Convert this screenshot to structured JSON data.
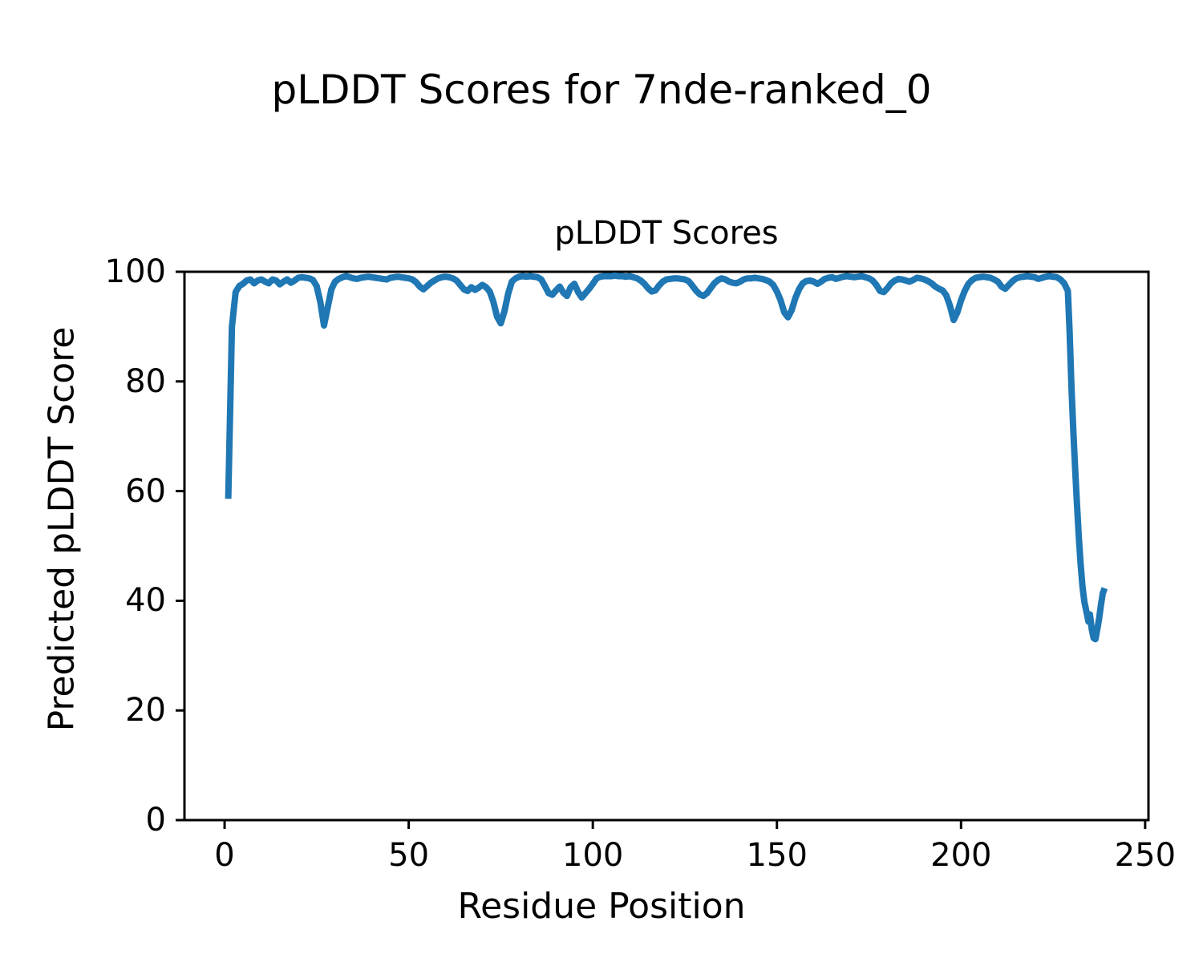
{
  "figure": {
    "suptitle": "pLDDT Scores for 7nde-ranked_0"
  },
  "chart_data": {
    "type": "line",
    "title": "pLDDT Scores",
    "xlabel": "Residue Position",
    "ylabel": "Predicted pLDDT Score",
    "xlim": [
      -10.9,
      250.9
    ],
    "ylim": [
      0,
      100
    ],
    "xticks": [
      "0",
      "50",
      "100",
      "150",
      "200",
      "250"
    ],
    "xtick_values": [
      0,
      50,
      100,
      150,
      200,
      250
    ],
    "yticks": [
      "0",
      "20",
      "40",
      "60",
      "80",
      "100"
    ],
    "ytick_values": [
      0,
      20,
      40,
      60,
      80,
      100
    ],
    "grid": false,
    "legend": null,
    "line_color": "#1f77b4",
    "line_width": 8,
    "series": [
      {
        "name": "pLDDT",
        "points": [
          [
            1,
            58.6
          ],
          [
            2,
            90.0
          ],
          [
            3,
            96.3
          ],
          [
            4,
            97.4
          ],
          [
            5,
            97.8
          ],
          [
            6,
            98.4
          ],
          [
            7,
            98.6
          ],
          [
            8,
            97.9
          ],
          [
            9,
            98.4
          ],
          [
            10,
            98.6
          ],
          [
            11,
            98.2
          ],
          [
            12,
            97.9
          ],
          [
            13,
            98.6
          ],
          [
            14,
            98.4
          ],
          [
            15,
            97.7
          ],
          [
            16,
            98.2
          ],
          [
            17,
            98.6
          ],
          [
            18,
            98.0
          ],
          [
            19,
            98.4
          ],
          [
            20,
            98.9
          ],
          [
            21,
            99.0
          ],
          [
            22,
            98.9
          ],
          [
            23,
            98.8
          ],
          [
            24,
            98.5
          ],
          [
            25,
            97.4
          ],
          [
            26,
            94.5
          ],
          [
            27,
            90.2
          ],
          [
            28,
            93.5
          ],
          [
            29,
            96.8
          ],
          [
            30,
            98.2
          ],
          [
            31,
            98.7
          ],
          [
            32,
            99.0
          ],
          [
            33,
            99.2
          ],
          [
            34,
            99.0
          ],
          [
            35,
            98.8
          ],
          [
            36,
            98.7
          ],
          [
            37,
            98.9
          ],
          [
            38,
            99.0
          ],
          [
            39,
            99.1
          ],
          [
            40,
            99.0
          ],
          [
            41,
            98.9
          ],
          [
            42,
            98.8
          ],
          [
            43,
            98.7
          ],
          [
            44,
            98.6
          ],
          [
            45,
            98.9
          ],
          [
            46,
            99.0
          ],
          [
            47,
            99.1
          ],
          [
            48,
            99.0
          ],
          [
            49,
            98.9
          ],
          [
            50,
            98.8
          ],
          [
            51,
            98.6
          ],
          [
            52,
            98.1
          ],
          [
            53,
            97.3
          ],
          [
            54,
            96.8
          ],
          [
            55,
            97.4
          ],
          [
            56,
            98.0
          ],
          [
            57,
            98.4
          ],
          [
            58,
            98.8
          ],
          [
            59,
            99.0
          ],
          [
            60,
            99.1
          ],
          [
            61,
            99.0
          ],
          [
            62,
            98.8
          ],
          [
            63,
            98.4
          ],
          [
            64,
            97.6
          ],
          [
            65,
            96.8
          ],
          [
            66,
            96.5
          ],
          [
            67,
            97.2
          ],
          [
            68,
            96.7
          ],
          [
            69,
            97.1
          ],
          [
            70,
            97.6
          ],
          [
            71,
            97.2
          ],
          [
            72,
            96.4
          ],
          [
            73,
            94.5
          ],
          [
            74,
            91.8
          ],
          [
            75,
            90.6
          ],
          [
            76,
            92.8
          ],
          [
            77,
            96.0
          ],
          [
            78,
            98.2
          ],
          [
            79,
            98.8
          ],
          [
            80,
            99.1
          ],
          [
            81,
            99.2
          ],
          [
            82,
            99.1
          ],
          [
            83,
            99.2
          ],
          [
            84,
            99.1
          ],
          [
            85,
            99.0
          ],
          [
            86,
            98.6
          ],
          [
            87,
            97.4
          ],
          [
            88,
            96.1
          ],
          [
            89,
            95.8
          ],
          [
            90,
            96.6
          ],
          [
            91,
            97.3
          ],
          [
            92,
            96.2
          ],
          [
            93,
            95.6
          ],
          [
            94,
            97.2
          ],
          [
            95,
            97.8
          ],
          [
            96,
            96.3
          ],
          [
            97,
            95.3
          ],
          [
            98,
            96.1
          ],
          [
            99,
            96.9
          ],
          [
            100,
            97.8
          ],
          [
            101,
            98.8
          ],
          [
            102,
            99.1
          ],
          [
            103,
            99.2
          ],
          [
            104,
            99.2
          ],
          [
            105,
            99.2
          ],
          [
            106,
            99.3
          ],
          [
            107,
            99.2
          ],
          [
            108,
            99.2
          ],
          [
            109,
            99.1
          ],
          [
            110,
            99.2
          ],
          [
            111,
            99.0
          ],
          [
            112,
            98.8
          ],
          [
            113,
            98.4
          ],
          [
            114,
            97.8
          ],
          [
            115,
            97.0
          ],
          [
            116,
            96.4
          ],
          [
            117,
            96.6
          ],
          [
            118,
            97.5
          ],
          [
            119,
            98.2
          ],
          [
            120,
            98.6
          ],
          [
            121,
            98.7
          ],
          [
            122,
            98.8
          ],
          [
            123,
            98.8
          ],
          [
            124,
            98.7
          ],
          [
            125,
            98.6
          ],
          [
            126,
            98.3
          ],
          [
            127,
            97.5
          ],
          [
            128,
            96.6
          ],
          [
            129,
            95.9
          ],
          [
            130,
            95.6
          ],
          [
            131,
            96.1
          ],
          [
            132,
            97.0
          ],
          [
            133,
            97.9
          ],
          [
            134,
            98.5
          ],
          [
            135,
            98.8
          ],
          [
            136,
            98.6
          ],
          [
            137,
            98.2
          ],
          [
            138,
            98.0
          ],
          [
            139,
            97.9
          ],
          [
            140,
            98.2
          ],
          [
            141,
            98.6
          ],
          [
            142,
            98.8
          ],
          [
            143,
            98.8
          ],
          [
            144,
            98.9
          ],
          [
            145,
            98.8
          ],
          [
            146,
            98.7
          ],
          [
            147,
            98.5
          ],
          [
            148,
            98.2
          ],
          [
            149,
            97.6
          ],
          [
            150,
            96.4
          ],
          [
            151,
            94.8
          ],
          [
            152,
            92.6
          ],
          [
            153,
            91.7
          ],
          [
            154,
            93.0
          ],
          [
            155,
            95.2
          ],
          [
            156,
            96.8
          ],
          [
            157,
            97.9
          ],
          [
            158,
            98.3
          ],
          [
            159,
            98.4
          ],
          [
            160,
            98.2
          ],
          [
            161,
            97.8
          ],
          [
            162,
            98.2
          ],
          [
            163,
            98.7
          ],
          [
            164,
            98.9
          ],
          [
            165,
            99.0
          ],
          [
            166,
            98.7
          ],
          [
            167,
            98.9
          ],
          [
            168,
            99.1
          ],
          [
            169,
            99.2
          ],
          [
            170,
            99.1
          ],
          [
            171,
            99.0
          ],
          [
            172,
            99.1
          ],
          [
            173,
            99.2
          ],
          [
            174,
            99.0
          ],
          [
            175,
            98.8
          ],
          [
            176,
            98.4
          ],
          [
            177,
            97.6
          ],
          [
            178,
            96.5
          ],
          [
            179,
            96.3
          ],
          [
            180,
            97.0
          ],
          [
            181,
            97.9
          ],
          [
            182,
            98.4
          ],
          [
            183,
            98.7
          ],
          [
            184,
            98.6
          ],
          [
            185,
            98.4
          ],
          [
            186,
            98.2
          ],
          [
            187,
            98.5
          ],
          [
            188,
            98.9
          ],
          [
            189,
            98.8
          ],
          [
            190,
            98.6
          ],
          [
            191,
            98.3
          ],
          [
            192,
            97.9
          ],
          [
            193,
            97.3
          ],
          [
            194,
            96.9
          ],
          [
            195,
            96.6
          ],
          [
            196,
            95.7
          ],
          [
            197,
            93.8
          ],
          [
            198,
            91.2
          ],
          [
            199,
            92.6
          ],
          [
            200,
            94.8
          ],
          [
            201,
            96.5
          ],
          [
            202,
            97.8
          ],
          [
            203,
            98.5
          ],
          [
            204,
            98.9
          ],
          [
            205,
            99.0
          ],
          [
            206,
            99.1
          ],
          [
            207,
            99.0
          ],
          [
            208,
            98.9
          ],
          [
            209,
            98.6
          ],
          [
            210,
            98.2
          ],
          [
            211,
            97.3
          ],
          [
            212,
            96.9
          ],
          [
            213,
            97.6
          ],
          [
            214,
            98.3
          ],
          [
            215,
            98.8
          ],
          [
            216,
            99.0
          ],
          [
            217,
            99.1
          ],
          [
            218,
            99.2
          ],
          [
            219,
            99.1
          ],
          [
            220,
            99.0
          ],
          [
            221,
            98.7
          ],
          [
            222,
            98.9
          ],
          [
            223,
            99.1
          ],
          [
            224,
            99.2
          ],
          [
            225,
            99.1
          ],
          [
            226,
            99.0
          ],
          [
            227,
            98.6
          ],
          [
            228,
            97.9
          ],
          [
            229,
            96.5
          ],
          [
            229.5,
            89.0
          ],
          [
            230,
            79.0
          ],
          [
            230.5,
            71.0
          ],
          [
            231,
            64.0
          ],
          [
            231.5,
            57.5
          ],
          [
            232,
            51.5
          ],
          [
            232.5,
            46.5
          ],
          [
            233,
            42.5
          ],
          [
            233.5,
            39.8
          ],
          [
            234,
            38.2
          ],
          [
            234.6,
            36.2
          ],
          [
            235,
            37.5
          ],
          [
            235.5,
            34.8
          ],
          [
            236,
            33.2
          ],
          [
            236.5,
            33.0
          ],
          [
            237,
            34.8
          ],
          [
            237.5,
            36.8
          ],
          [
            238,
            39.3
          ],
          [
            238.5,
            41.4
          ],
          [
            239,
            42.3
          ]
        ]
      }
    ]
  }
}
